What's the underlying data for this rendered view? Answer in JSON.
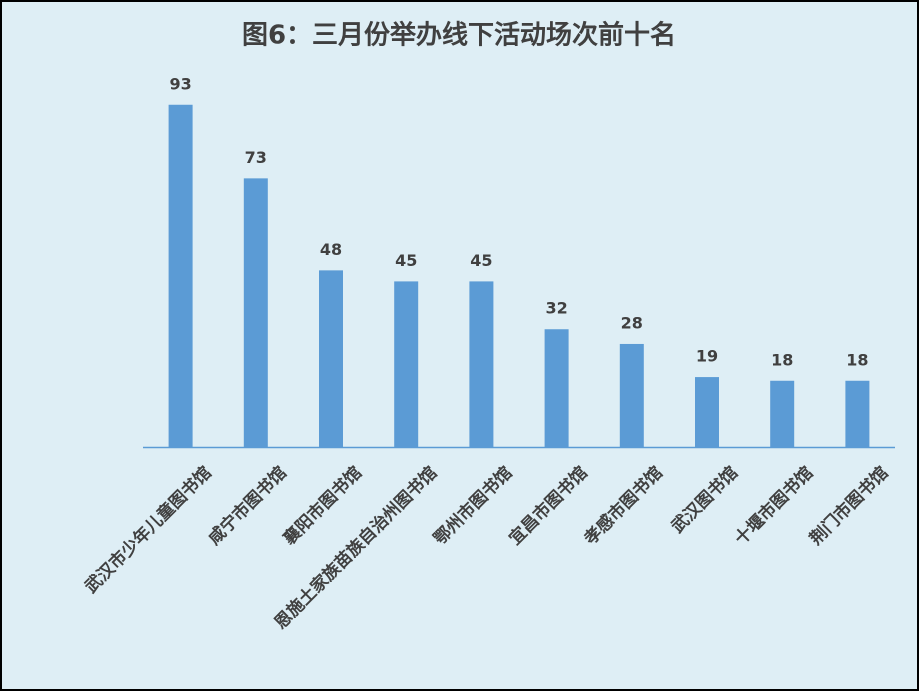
{
  "chart_data": {
    "type": "bar",
    "title": "图6：三月份举办线下活动场次前十名",
    "categories": [
      "武汉市少年儿童图书馆",
      "咸宁市图书馆",
      "襄阳市图书馆",
      "恩施土家族苗族自治州图书馆",
      "鄂州市图书馆",
      "宜昌市图书馆",
      "孝感市图书馆",
      "武汉图书馆",
      "十堰市图书馆",
      "荆门市图书馆"
    ],
    "values": [
      93,
      73,
      48,
      45,
      45,
      32,
      28,
      19,
      18,
      18
    ],
    "color": "#5b9bd5"
  }
}
